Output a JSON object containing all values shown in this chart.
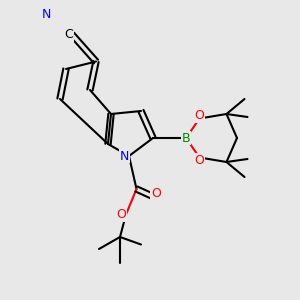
{
  "bg_color": "#e8e8e8",
  "bond_color": "#000000",
  "bond_width": 1.5,
  "atom_colors": {
    "N": "#0000ff",
    "O": "#ff0000",
    "B": "#008800",
    "C": "#000000"
  },
  "font_size": 8,
  "font_size_small": 7
}
